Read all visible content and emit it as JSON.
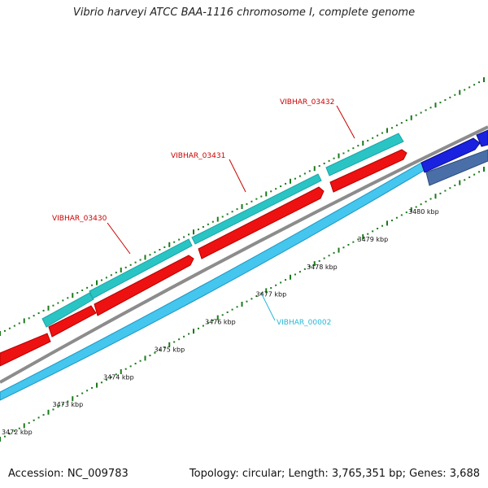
{
  "title": "Vibrio harveyi ATCC BAA-1116 chromosome I, complete genome",
  "footer": {
    "accession": "Accession: NC_009783",
    "summary": "Topology: circular; Length: 3,765,351 bp; Genes: 3,688"
  },
  "colors": {
    "gene_teal": "#2ac4c4",
    "gene_red": "#ee1111",
    "gene_lightblue": "#44c6ee",
    "gene_blue": "#1a22e0",
    "gene_steel": "#4a6fa8",
    "backbone": "#8c8c8c",
    "tick_green": "#1a7a1a",
    "label_red": "#cc0000",
    "label_cyan": "#22b8d8"
  },
  "ticks": [
    {
      "kbp": 3472,
      "label": "3472 kbp"
    },
    {
      "kbp": 3473,
      "label": "3473 kbp"
    },
    {
      "kbp": 3474,
      "label": "3474 kbp"
    },
    {
      "kbp": 3475,
      "label": "3475 kbp"
    },
    {
      "kbp": 3476,
      "label": "3476 kbp"
    },
    {
      "kbp": 3477,
      "label": "3477 kbp"
    },
    {
      "kbp": 3478,
      "label": "3478 kbp"
    },
    {
      "kbp": 3479,
      "label": "3479 kbp"
    },
    {
      "kbp": 3480,
      "label": "3480 kbp"
    }
  ],
  "gene_labels": [
    {
      "name": "VIBHAR_03430",
      "color": "red"
    },
    {
      "name": "VIBHAR_03431",
      "color": "red"
    },
    {
      "name": "VIBHAR_03432",
      "color": "red"
    },
    {
      "name": "VIBHAR_00002",
      "color": "cyan"
    }
  ]
}
